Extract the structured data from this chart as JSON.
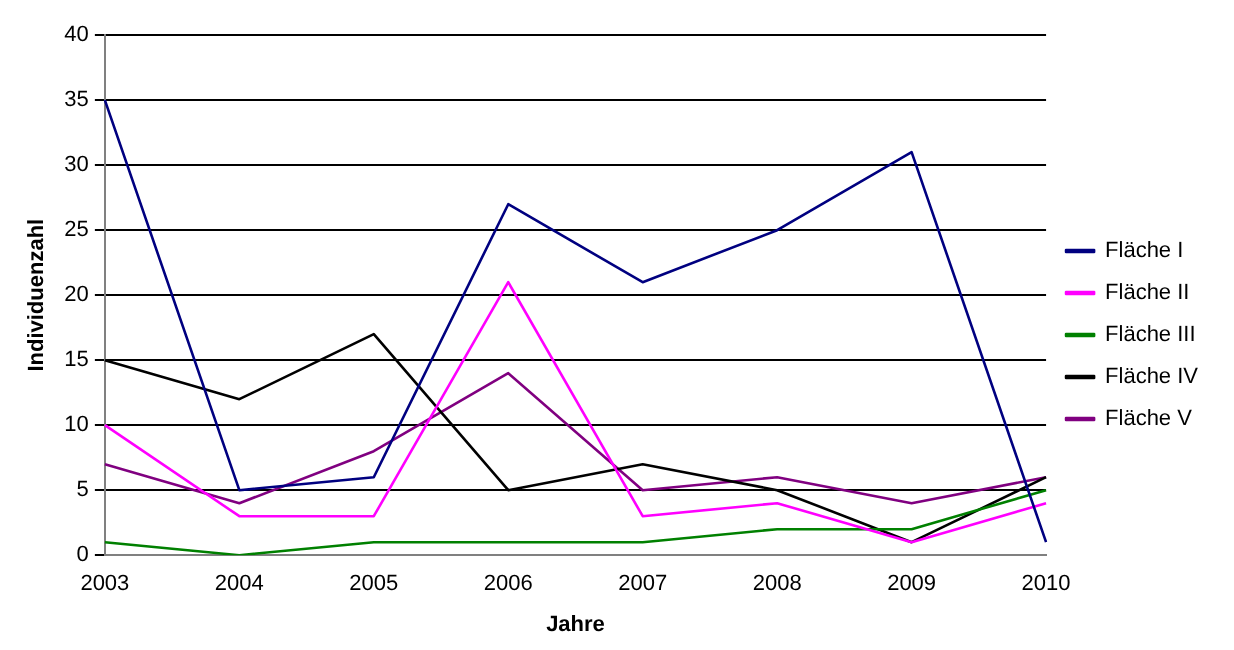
{
  "chart_data": {
    "type": "line",
    "xlabel": "Jahre",
    "ylabel": "Individuenzahl",
    "categories": [
      "2003",
      "2004",
      "2005",
      "2006",
      "2007",
      "2008",
      "2009",
      "2010"
    ],
    "series": [
      {
        "name": "Fläche I",
        "color": "#000080",
        "values": [
          35,
          5,
          6,
          27,
          21,
          25,
          31,
          1
        ]
      },
      {
        "name": "Fläche II",
        "color": "#ff00ff",
        "values": [
          10,
          3,
          3,
          21,
          3,
          4,
          1,
          4
        ]
      },
      {
        "name": "Fläche III",
        "color": "#008000",
        "values": [
          1,
          0,
          1,
          1,
          1,
          2,
          2,
          5
        ]
      },
      {
        "name": "Fläche IV",
        "color": "#000000",
        "values": [
          15,
          12,
          17,
          5,
          7,
          5,
          1,
          6
        ]
      },
      {
        "name": "Fläche V",
        "color": "#800080",
        "values": [
          7,
          4,
          8,
          14,
          5,
          6,
          4,
          6
        ]
      }
    ],
    "ylim": [
      0,
      40
    ],
    "yticks": [
      0,
      5,
      10,
      15,
      20,
      25,
      30,
      35,
      40
    ],
    "grid": "y",
    "legend": "right",
    "marker": "none",
    "line_style": "solid"
  }
}
